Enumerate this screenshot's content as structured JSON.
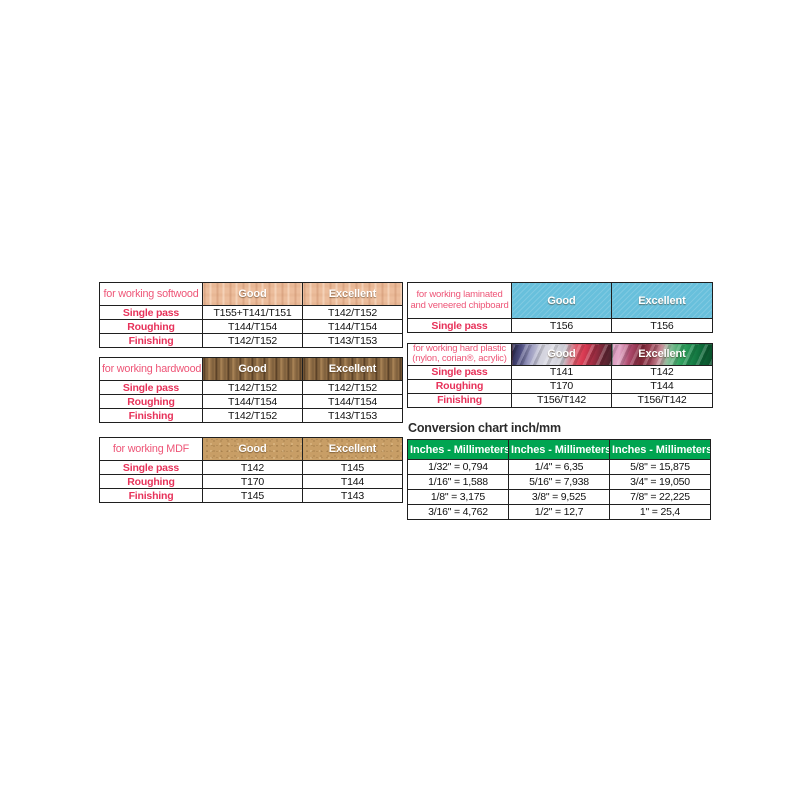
{
  "colors": {
    "label_pink": "#ee5577",
    "row_label_red": "#e7325a",
    "green_header": "#00a551",
    "blue_header": "#68c0dc",
    "border": "#1f1f1f"
  },
  "tables": {
    "softwood": {
      "title": "for working softwood",
      "col_headers": [
        "Good",
        "Excellent"
      ],
      "rows": [
        {
          "label": "Single pass",
          "good": "T155+T141/T151",
          "excellent": "T142/T152"
        },
        {
          "label": "Roughing",
          "good": "T144/T154",
          "excellent": "T144/T154"
        },
        {
          "label": "Finishing",
          "good": "T142/T152",
          "excellent": "T143/T153"
        }
      ]
    },
    "hardwood": {
      "title": "for working hardwood",
      "col_headers": [
        "Good",
        "Excellent"
      ],
      "rows": [
        {
          "label": "Single pass",
          "good": "T142/T152",
          "excellent": "T142/T152"
        },
        {
          "label": "Roughing",
          "good": "T144/T154",
          "excellent": "T144/T154"
        },
        {
          "label": "Finishing",
          "good": "T142/T152",
          "excellent": "T143/T153"
        }
      ]
    },
    "mdf": {
      "title": "for working MDF",
      "col_headers": [
        "Good",
        "Excellent"
      ],
      "rows": [
        {
          "label": "Single pass",
          "good": "T142",
          "excellent": "T145"
        },
        {
          "label": "Roughing",
          "good": "T170",
          "excellent": "T144"
        },
        {
          "label": "Finishing",
          "good": "T145",
          "excellent": "T143"
        }
      ]
    },
    "chipboard": {
      "title": "for working laminated and veneered chipboard",
      "col_headers": [
        "Good",
        "Excellent"
      ],
      "rows": [
        {
          "label": "Single pass",
          "good": "T156",
          "excellent": "T156"
        }
      ]
    },
    "plastic": {
      "title_line1": "for working hard plastic",
      "title_line2": "(nylon, corian®, acrylic)",
      "col_headers": [
        "Good",
        "Excellent"
      ],
      "rows": [
        {
          "label": "Single pass",
          "good": "T141",
          "excellent": "T142"
        },
        {
          "label": "Roughing",
          "good": "T170",
          "excellent": "T144"
        },
        {
          "label": "Finishing",
          "good": "T156/T142",
          "excellent": "T156/T142"
        }
      ]
    },
    "conversion": {
      "title": "Conversion chart inch/mm",
      "col_headers": [
        "Inches - Millimeters",
        "Inches - Millimeters",
        "Inches - Millimeters"
      ],
      "rows": [
        {
          "c0": "1/32\" = 0,794",
          "c1": "1/4\" = 6,35",
          "c2": "5/8\" = 15,875"
        },
        {
          "c0": "1/16\" = 1,588",
          "c1": "5/16\" = 7,938",
          "c2": "3/4\" = 19,050"
        },
        {
          "c0": "1/8\" = 3,175",
          "c1": "3/8\" = 9,525",
          "c2": "7/8\" = 22,225"
        },
        {
          "c0": "3/16\" = 4,762",
          "c1": "1/2\" = 12,7",
          "c2": "1\" = 25,4"
        }
      ]
    }
  }
}
